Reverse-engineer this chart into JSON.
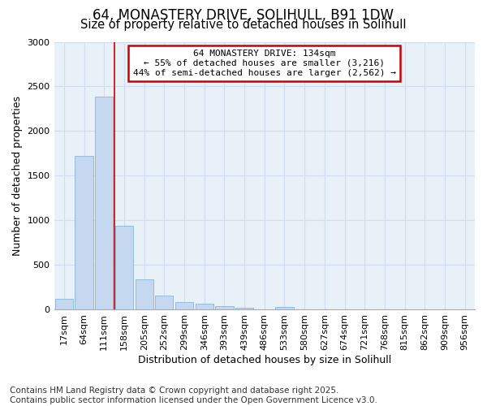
{
  "title_line1": "64, MONASTERY DRIVE, SOLIHULL, B91 1DW",
  "title_line2": "Size of property relative to detached houses in Solihull",
  "xlabel": "Distribution of detached houses by size in Solihull",
  "ylabel": "Number of detached properties",
  "bar_labels": [
    "17sqm",
    "64sqm",
    "111sqm",
    "158sqm",
    "205sqm",
    "252sqm",
    "299sqm",
    "346sqm",
    "393sqm",
    "439sqm",
    "486sqm",
    "533sqm",
    "580sqm",
    "627sqm",
    "674sqm",
    "721sqm",
    "768sqm",
    "815sqm",
    "862sqm",
    "909sqm",
    "956sqm"
  ],
  "bar_values": [
    120,
    1720,
    2390,
    940,
    340,
    155,
    90,
    65,
    45,
    18,
    5,
    30,
    0,
    0,
    0,
    0,
    0,
    0,
    0,
    0,
    0
  ],
  "bar_color": "#c5d8f0",
  "bar_edge_color": "#8ab4d8",
  "grid_color": "#d0ddf0",
  "annotation_box_text": "64 MONASTERY DRIVE: 134sqm\n← 55% of detached houses are smaller (3,216)\n44% of semi-detached houses are larger (2,562) →",
  "annotation_box_color": "#cc0000",
  "vline_x": 2.5,
  "vline_color": "#cc0000",
  "ylim": [
    0,
    3000
  ],
  "yticks": [
    0,
    500,
    1000,
    1500,
    2000,
    2500,
    3000
  ],
  "footnote": "Contains HM Land Registry data © Crown copyright and database right 2025.\nContains public sector information licensed under the Open Government Licence v3.0.",
  "plot_bg_color": "#e8f0f8",
  "fig_bg_color": "#ffffff",
  "title_fontsize": 12,
  "subtitle_fontsize": 10.5,
  "axis_label_fontsize": 9,
  "tick_fontsize": 8,
  "footnote_fontsize": 7.5
}
